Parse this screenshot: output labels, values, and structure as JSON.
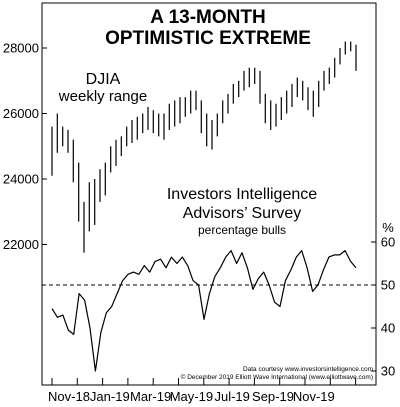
{
  "chart_data": {
    "type": "line",
    "title": "A 13-MONTH",
    "subtitle": "OPTIMISTIC EXTREME",
    "upper_panel": {
      "type": "range-bar",
      "series_name": "DJIA",
      "series_subtitle": "weekly range",
      "ylim": [
        23000,
        29000
      ],
      "y_ticks": [
        22000,
        24000,
        26000,
        28000
      ],
      "ranges": [
        [
          24100,
          25600
        ],
        [
          24800,
          26000
        ],
        [
          25000,
          25600
        ],
        [
          24800,
          25500
        ],
        [
          23900,
          25200
        ],
        [
          22700,
          24500
        ],
        [
          21750,
          23300
        ],
        [
          22400,
          23900
        ],
        [
          22600,
          24000
        ],
        [
          23300,
          24300
        ],
        [
          23500,
          24500
        ],
        [
          24200,
          25000
        ],
        [
          24400,
          25200
        ],
        [
          24700,
          25300
        ],
        [
          25000,
          25600
        ],
        [
          25100,
          25800
        ],
        [
          25200,
          25900
        ],
        [
          25400,
          26000
        ],
        [
          25500,
          26200
        ],
        [
          25400,
          26100
        ],
        [
          25300,
          26000
        ],
        [
          25200,
          26000
        ],
        [
          25500,
          26300
        ],
        [
          25600,
          26400
        ],
        [
          25700,
          26500
        ],
        [
          25900,
          26500
        ],
        [
          26000,
          26700
        ],
        [
          26100,
          26700
        ],
        [
          25400,
          26400
        ],
        [
          25000,
          26000
        ],
        [
          24900,
          25800
        ],
        [
          25300,
          26000
        ],
        [
          25700,
          26400
        ],
        [
          26000,
          26600
        ],
        [
          26300,
          26900
        ],
        [
          26500,
          27000
        ],
        [
          26700,
          27300
        ],
        [
          26800,
          27400
        ],
        [
          26900,
          27400
        ],
        [
          26300,
          27300
        ],
        [
          25700,
          26600
        ],
        [
          25500,
          26400
        ],
        [
          25600,
          26300
        ],
        [
          25800,
          26500
        ],
        [
          26000,
          26700
        ],
        [
          26200,
          26900
        ],
        [
          26500,
          27100
        ],
        [
          26400,
          27000
        ],
        [
          26100,
          26800
        ],
        [
          25900,
          26700
        ],
        [
          26200,
          27000
        ],
        [
          26700,
          27300
        ],
        [
          26900,
          27400
        ],
        [
          27100,
          27700
        ],
        [
          27500,
          28000
        ],
        [
          27800,
          28200
        ],
        [
          27900,
          28200
        ],
        [
          27300,
          28100
        ]
      ]
    },
    "lower_panel": {
      "type": "line",
      "title": "Investors Intelligence",
      "subtitle": "Advisors’ Survey",
      "caption": "percentage bulls",
      "unit": "%",
      "ylim": [
        28,
        62
      ],
      "y_ticks": [
        30,
        40,
        50,
        60
      ],
      "reference_line": 50,
      "values": [
        44.5,
        42.5,
        43.0,
        39.5,
        38.5,
        48.0,
        46.5,
        40.0,
        30.0,
        39.0,
        43.5,
        45.0,
        48.0,
        51.0,
        52.5,
        53.0,
        52.5,
        54.5,
        53.0,
        55.5,
        56.0,
        54.0,
        56.5,
        55.0,
        56.5,
        54.5,
        51.0,
        50.0,
        42.0,
        48.0,
        52.0,
        54.0,
        56.5,
        58.0,
        55.0,
        57.5,
        54.0,
        49.0,
        51.5,
        53.0,
        50.0,
        46.0,
        45.0,
        51.0,
        53.5,
        56.5,
        58.0,
        54.0,
        48.5,
        50.0,
        53.5,
        56.5,
        57.0,
        57.0,
        58.0,
        55.5,
        54.0
      ]
    },
    "x_tick_labels": [
      "Nov-18",
      "Jan-19",
      "Mar-19",
      "May-19",
      "Jul-19",
      "Sep-19",
      "Nov-19"
    ],
    "credits": [
      "Data courtesy www.investorsintelligence.com",
      "© December 2019 Elliott Wave International (www.elliottwave.com)"
    ],
    "grid": false,
    "colors": {
      "ink": "#000000",
      "background": "#ffffff"
    }
  }
}
